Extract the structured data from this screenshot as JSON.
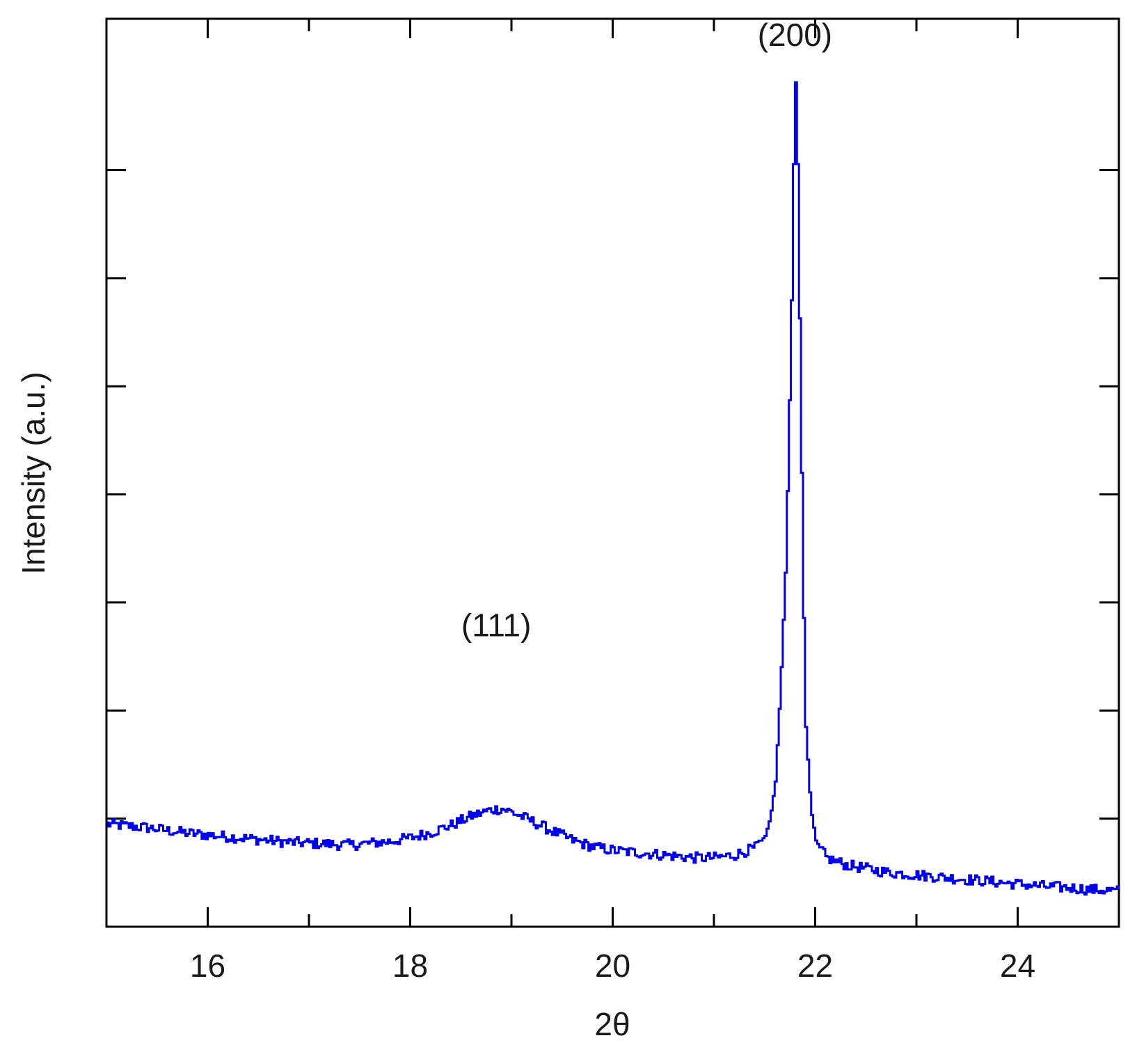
{
  "chart_data": {
    "type": "line",
    "title": "",
    "xlabel": "2θ",
    "ylabel": "Intensity (a.u.)",
    "xlim": [
      15,
      25
    ],
    "ylim": [
      0,
      100
    ],
    "x_ticks": [
      16,
      18,
      20,
      22,
      24
    ],
    "x_tick_labels": [
      "16",
      "18",
      "20",
      "22",
      "24"
    ],
    "y_tick_labels_shown": false,
    "grid": false,
    "line_color": "#0000ee",
    "annotations": [
      {
        "text": "(111)",
        "x": 18.85,
        "y": 32
      },
      {
        "text": "(200)",
        "x": 21.8,
        "y": 97
      }
    ],
    "series": [
      {
        "points": [
          [
            15.0,
            11.3
          ],
          [
            15.2,
            11.1
          ],
          [
            15.4,
            10.9
          ],
          [
            15.6,
            10.6
          ],
          [
            15.8,
            10.3
          ],
          [
            16.0,
            10.1
          ],
          [
            16.2,
            9.9
          ],
          [
            16.4,
            9.7
          ],
          [
            16.6,
            9.5
          ],
          [
            16.8,
            9.3
          ],
          [
            17.0,
            9.2
          ],
          [
            17.2,
            9.1
          ],
          [
            17.4,
            9.0
          ],
          [
            17.6,
            9.2
          ],
          [
            17.8,
            9.4
          ],
          [
            18.0,
            9.8
          ],
          [
            18.2,
            10.4
          ],
          [
            18.4,
            11.2
          ],
          [
            18.6,
            12.2
          ],
          [
            18.8,
            12.9
          ],
          [
            18.9,
            13.0
          ],
          [
            19.0,
            12.6
          ],
          [
            19.2,
            11.6
          ],
          [
            19.4,
            10.5
          ],
          [
            19.6,
            9.5
          ],
          [
            19.8,
            8.8
          ],
          [
            20.0,
            8.4
          ],
          [
            20.2,
            8.2
          ],
          [
            20.4,
            8.0
          ],
          [
            20.6,
            7.8
          ],
          [
            20.8,
            7.6
          ],
          [
            21.0,
            7.6
          ],
          [
            21.2,
            7.9
          ],
          [
            21.4,
            8.7
          ],
          [
            21.5,
            10.0
          ],
          [
            21.55,
            12.0
          ],
          [
            21.6,
            16.0
          ],
          [
            21.65,
            26.0
          ],
          [
            21.7,
            39.0
          ],
          [
            21.72,
            48.0
          ],
          [
            21.74,
            58.0
          ],
          [
            21.76,
            69.0
          ],
          [
            21.78,
            84.0
          ],
          [
            21.8,
            93.0
          ],
          [
            21.82,
            84.0
          ],
          [
            21.84,
            67.0
          ],
          [
            21.86,
            50.0
          ],
          [
            21.88,
            34.0
          ],
          [
            21.9,
            22.0
          ],
          [
            21.95,
            13.0
          ],
          [
            22.0,
            9.5
          ],
          [
            22.1,
            7.6
          ],
          [
            22.3,
            6.8
          ],
          [
            22.5,
            6.4
          ],
          [
            22.7,
            6.0
          ],
          [
            22.9,
            5.8
          ],
          [
            23.1,
            5.6
          ],
          [
            23.3,
            5.4
          ],
          [
            23.5,
            5.2
          ],
          [
            23.7,
            5.0
          ],
          [
            23.9,
            4.8
          ],
          [
            24.1,
            4.6
          ],
          [
            24.3,
            4.4
          ],
          [
            24.5,
            4.3
          ],
          [
            24.7,
            4.1
          ],
          [
            24.9,
            4.0
          ],
          [
            25.0,
            3.9
          ]
        ]
      }
    ]
  }
}
